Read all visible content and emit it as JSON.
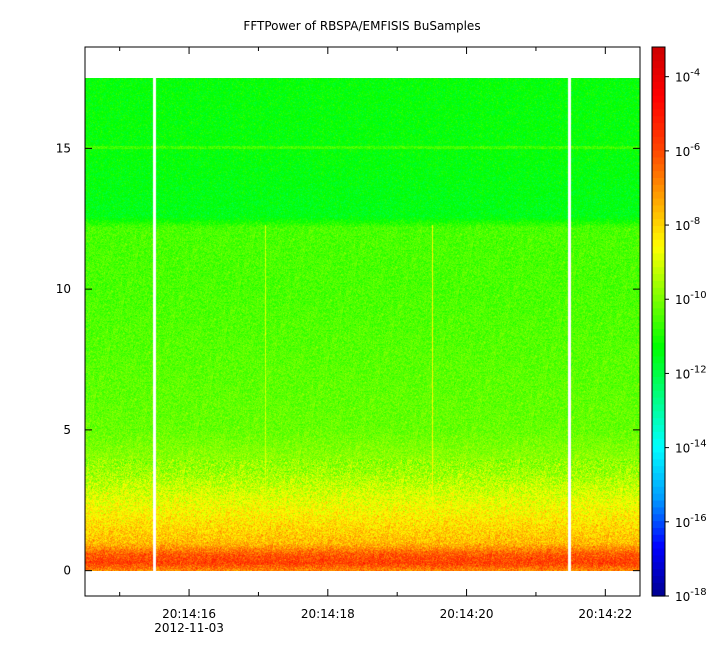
{
  "chart_data": {
    "type": "heatmap",
    "title": "FFTPower of RBSPA/EMFISIS  BuSamples",
    "xlabel": "",
    "ylabel": "",
    "x_ticks": [
      {
        "t": 16,
        "label": "20:14:16",
        "sublabel": "2012-11-03"
      },
      {
        "t": 18,
        "label": "20:14:18",
        "sublabel": ""
      },
      {
        "t": 20,
        "label": "20:14:20",
        "sublabel": ""
      },
      {
        "t": 22,
        "label": "20:14:22",
        "sublabel": ""
      }
    ],
    "x_minor_ticks": [
      15,
      17,
      19,
      21
    ],
    "xlim_seconds": [
      14.5,
      22.5
    ],
    "y_ticks": [
      0,
      5,
      10,
      15
    ],
    "ylim": [
      -0.9,
      18.6
    ],
    "data_extent_y": [
      0,
      17.5
    ],
    "gaps_seconds": [
      [
        15.47,
        15.52
      ],
      [
        21.45,
        21.5
      ]
    ],
    "colorbar": {
      "scale": "log",
      "range_exponent": [
        -18,
        -3.2
      ],
      "tick_exponents": [
        -4,
        -6,
        -8,
        -10,
        -12,
        -14,
        -16,
        -18
      ],
      "tick_labels": [
        "10",
        "10",
        "10",
        "10",
        "10",
        "10",
        "10",
        "10"
      ],
      "tick_superscripts": [
        "-4",
        "-6",
        "-8",
        "-10",
        "-12",
        "-14",
        "-16",
        "-18"
      ]
    },
    "power_profile": [
      {
        "y": 0.0,
        "log10_power": -7.0
      },
      {
        "y": 0.3,
        "log10_power": -5.8
      },
      {
        "y": 0.6,
        "log10_power": -6.2
      },
      {
        "y": 1.0,
        "log10_power": -7.6
      },
      {
        "y": 2.0,
        "log10_power": -8.4
      },
      {
        "y": 3.5,
        "log10_power": -9.6
      },
      {
        "y": 5.0,
        "log10_power": -10.2
      },
      {
        "y": 10.0,
        "log10_power": -10.5
      },
      {
        "y": 12.2,
        "log10_power": -10.5
      },
      {
        "y": 12.6,
        "log10_power": -11.5
      },
      {
        "y": 15.0,
        "log10_power": -11.3
      },
      {
        "y": 17.5,
        "log10_power": -11.3
      }
    ],
    "features": [
      {
        "kind": "narrowband-line",
        "y": 15.05,
        "log10_power": -10.6
      },
      {
        "kind": "vertical-streak",
        "t": 17.1,
        "log10_power": -9.0
      },
      {
        "kind": "vertical-streak",
        "t": 19.5,
        "log10_power": -8.5
      }
    ],
    "colors": {
      "background": "#ffffff",
      "gap": "#ffffff",
      "colormap": [
        "#00008f",
        "#0000ff",
        "#00a0ff",
        "#00ffff",
        "#00ff80",
        "#00ff00",
        "#80ff00",
        "#ffff00",
        "#ffa000",
        "#ff4000",
        "#ff0000",
        "#cc0000"
      ]
    }
  }
}
